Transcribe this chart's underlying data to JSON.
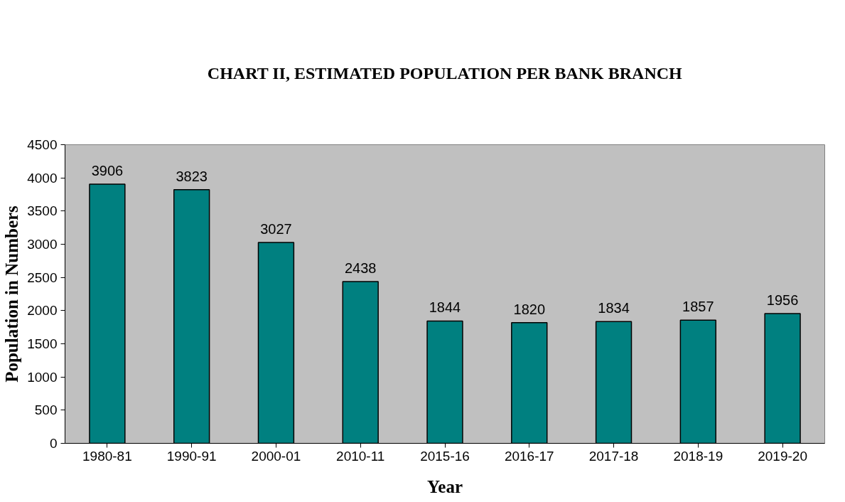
{
  "chart_data": {
    "type": "bar",
    "title": "CHART II, ESTIMATED POPULATION PER BANK BRANCH",
    "xlabel": "Year",
    "ylabel": "Population in Numbers",
    "categories": [
      "1980-81",
      "1990-91",
      "2000-01",
      "2010-11",
      "2015-16",
      "2016-17",
      "2017-18",
      "2018-19",
      "2019-20"
    ],
    "values": [
      3906,
      3823,
      3027,
      2438,
      1844,
      1820,
      1834,
      1857,
      1956
    ],
    "color": "#008080",
    "ylim": [
      0,
      4500
    ],
    "yticks": [
      0,
      500,
      1000,
      1500,
      2000,
      2500,
      3000,
      3500,
      4000,
      4500
    ],
    "grid": false,
    "data_labels": true
  }
}
